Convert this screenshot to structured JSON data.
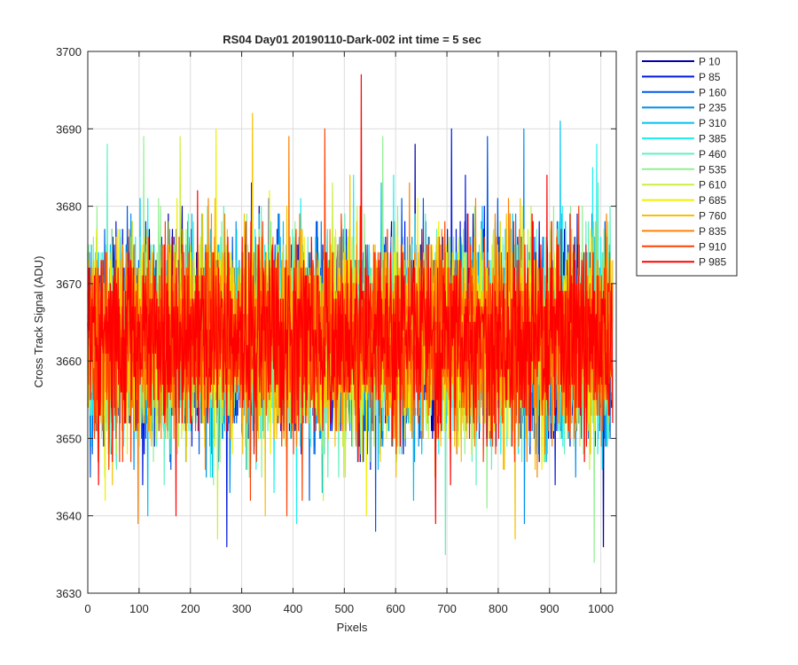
{
  "chart_data": {
    "type": "line",
    "title": "RS04 Day01 20190110-Dark-002 int time = 5 sec",
    "xlabel": "Pixels",
    "ylabel": "Cross Track Signal (ADU)",
    "xlim": [
      0,
      1030
    ],
    "ylim": [
      3630,
      3700
    ],
    "xticks": [
      0,
      100,
      200,
      300,
      400,
      500,
      600,
      700,
      800,
      900,
      1000
    ],
    "yticks": [
      3630,
      3640,
      3650,
      3660,
      3670,
      3680,
      3690,
      3700
    ],
    "grid": true,
    "legend_position": "outside-top-right",
    "n_points": 1024,
    "series": [
      {
        "name": "P 10",
        "color": "#0000a8",
        "mean": 3663,
        "sd": 6.2,
        "min": 3636,
        "max": 3688
      },
      {
        "name": "P 85",
        "color": "#0018dc",
        "mean": 3663,
        "sd": 6.2,
        "min": 3636,
        "max": 3690
      },
      {
        "name": "P 160",
        "color": "#0058e6",
        "mean": 3663,
        "sd": 6.2,
        "min": 3638,
        "max": 3689
      },
      {
        "name": "P 235",
        "color": "#0090ec",
        "mean": 3663,
        "sd": 6.2,
        "min": 3639,
        "max": 3690
      },
      {
        "name": "P 310",
        "color": "#00c0f2",
        "mean": 3663,
        "sd": 6.2,
        "min": 3640,
        "max": 3691
      },
      {
        "name": "P 385",
        "color": "#20f0f0",
        "mean": 3663,
        "sd": 6.2,
        "min": 3639,
        "max": 3688
      },
      {
        "name": "P 460",
        "color": "#60f0c0",
        "mean": 3663,
        "sd": 6.2,
        "min": 3635,
        "max": 3688
      },
      {
        "name": "P 535",
        "color": "#90f090",
        "mean": 3663,
        "sd": 6.2,
        "min": 3634,
        "max": 3689
      },
      {
        "name": "P 610",
        "color": "#c8f040",
        "mean": 3663,
        "sd": 6.2,
        "min": 3637,
        "max": 3689
      },
      {
        "name": "P 685",
        "color": "#f0f000",
        "mean": 3663,
        "sd": 6.2,
        "min": 3640,
        "max": 3690
      },
      {
        "name": "P 760",
        "color": "#f8c000",
        "mean": 3663,
        "sd": 6.2,
        "min": 3637,
        "max": 3692
      },
      {
        "name": "P 835",
        "color": "#ff8000",
        "mean": 3663,
        "sd": 6.2,
        "min": 3639,
        "max": 3689
      },
      {
        "name": "P 910",
        "color": "#ff4000",
        "mean": 3663,
        "sd": 6.2,
        "min": 3640,
        "max": 3690
      },
      {
        "name": "P 985",
        "color": "#ff0000",
        "mean": 3663,
        "sd": 6.2,
        "min": 3639,
        "max": 3697
      }
    ]
  }
}
